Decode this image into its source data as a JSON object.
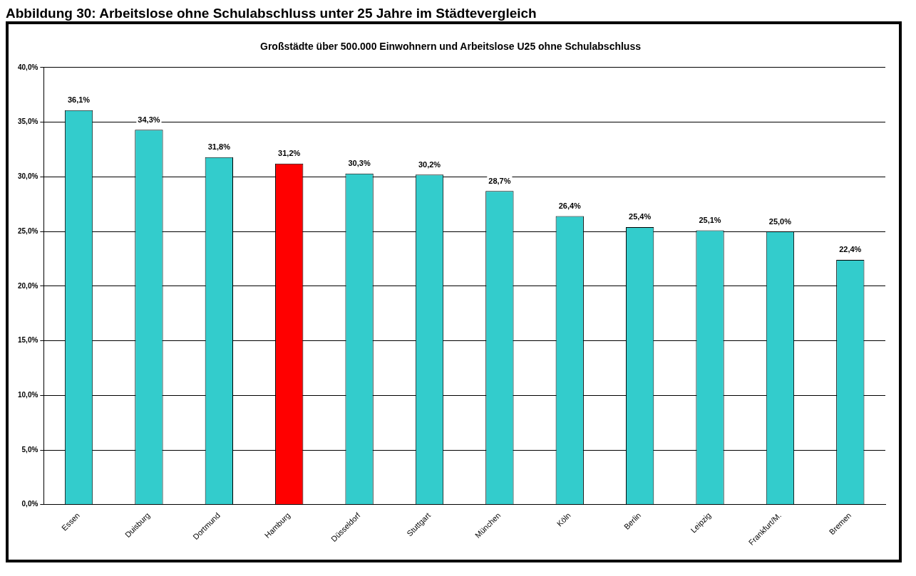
{
  "chart_data": {
    "type": "bar",
    "title": "Abbildung 30: Arbeitslose ohne Schulabschluss unter 25 Jahre im Städtevergleich",
    "subtitle": "Großstädte über 500.000 Einwohnern und Arbeitslose U25 ohne Schulabschluss",
    "categories": [
      "Essen",
      "Duisburg",
      "Dortmund",
      "Hamburg",
      "Düsseldorf",
      "Stuttgart",
      "München",
      "Köln",
      "Berlin",
      "Leipzig",
      "Frankfurt/M.",
      "Bremen"
    ],
    "values": [
      36.1,
      34.3,
      31.8,
      31.2,
      30.3,
      30.2,
      28.7,
      26.4,
      25.4,
      25.1,
      25.0,
      22.4
    ],
    "colors": [
      "#33cccc",
      "#33cccc",
      "#33cccc",
      "#ff0000",
      "#33cccc",
      "#33cccc",
      "#33cccc",
      "#33cccc",
      "#33cccc",
      "#33cccc",
      "#33cccc",
      "#33cccc"
    ],
    "value_labels": [
      "36,1%",
      "34,3%",
      "31,8%",
      "31,2%",
      "30,3%",
      "30,2%",
      "28,7%",
      "26,4%",
      "25,4%",
      "25,1%",
      "25,0%",
      "22,4%"
    ],
    "ylim": [
      0,
      40
    ],
    "yticks": [
      {
        "value": 0,
        "label": "0,0%"
      },
      {
        "value": 5,
        "label": "5,0%"
      },
      {
        "value": 10,
        "label": "10,0%"
      },
      {
        "value": 15,
        "label": "15,0%"
      },
      {
        "value": 20,
        "label": "20,0%"
      },
      {
        "value": 25,
        "label": "25,0%"
      },
      {
        "value": 30,
        "label": "30,0%"
      },
      {
        "value": 35,
        "label": "35,0%"
      },
      {
        "value": 40,
        "label": "40,0%"
      }
    ],
    "grid": "y"
  }
}
